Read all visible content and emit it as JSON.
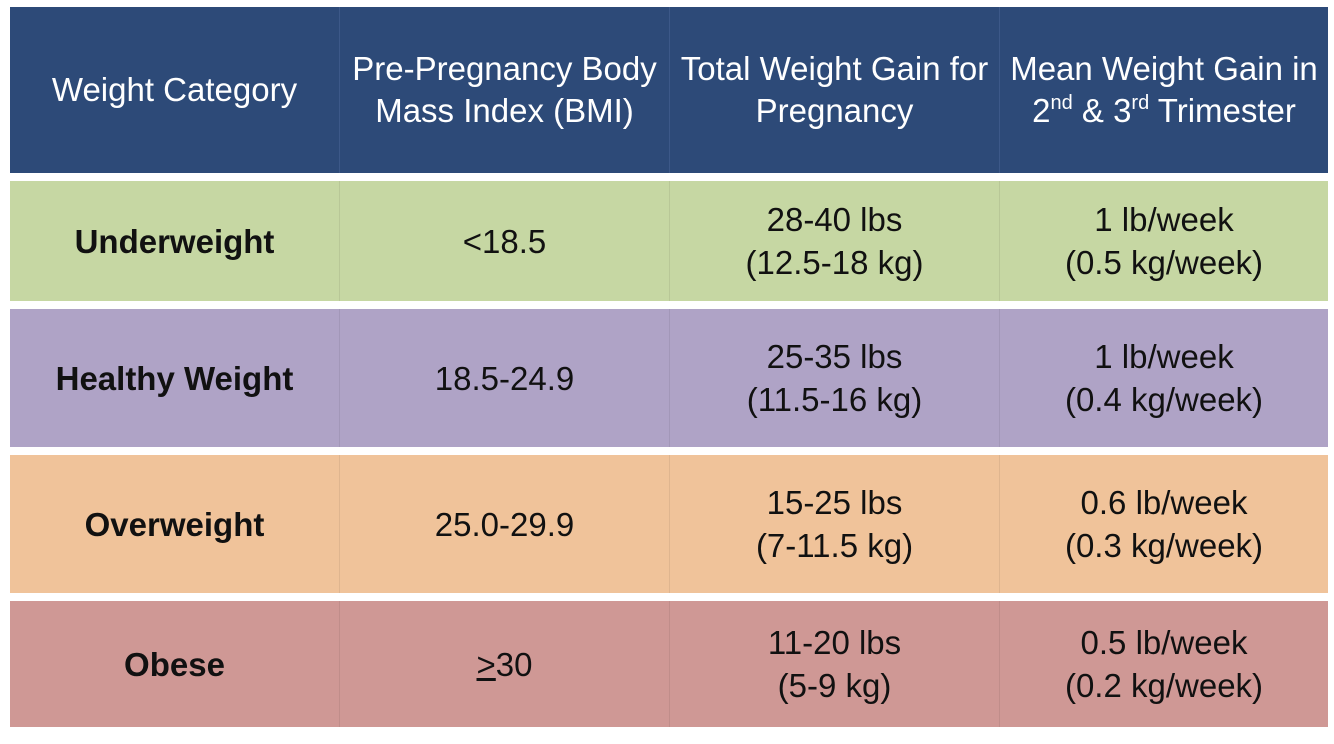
{
  "colors": {
    "header_bg": "#2d4a78",
    "underweight_bg": "#c6d7a3",
    "healthy_bg": "#afa3c6",
    "overweight_bg": "#f0c39a",
    "obese_bg": "#cf9895"
  },
  "header": {
    "col1": "Weight Category",
    "col2_line1": "Pre-Pregnancy Body",
    "col2_line2": "Mass Index (BMI)",
    "col3_line1": "Total Weight Gain for",
    "col3_line2": "Pregnancy",
    "col4_line1": "Mean Weight Gain in",
    "col4_num1": "2",
    "col4_sup1": "nd",
    "col4_amp": " & ",
    "col4_num2": "3",
    "col4_sup2": "rd",
    "col4_tail": " Trimester"
  },
  "rows": [
    {
      "category": "Underweight",
      "bmi_prefix": "",
      "bmi": "<18.5",
      "total_lbs": "28-40 lbs",
      "total_kg": "(12.5-18 kg)",
      "mean_lb": "1 lb/week",
      "mean_kg": "(0.5 kg/week)"
    },
    {
      "category": "Healthy Weight",
      "bmi_prefix": "",
      "bmi": "18.5-24.9",
      "total_lbs": "25-35 lbs",
      "total_kg": "(11.5-16 kg)",
      "mean_lb": "1 lb/week",
      "mean_kg": "(0.4 kg/week)"
    },
    {
      "category": "Overweight",
      "bmi_prefix": "",
      "bmi": "25.0-29.9",
      "total_lbs": "15-25 lbs",
      "total_kg": "(7-11.5 kg)",
      "mean_lb": "0.6 lb/week",
      "mean_kg": "(0.3 kg/week)"
    },
    {
      "category": "Obese",
      "bmi_prefix": ">",
      "bmi": "30",
      "total_lbs": "11-20 lbs",
      "total_kg": "(5-9 kg)",
      "mean_lb": "0.5 lb/week",
      "mean_kg": "(0.2 kg/week)"
    }
  ]
}
